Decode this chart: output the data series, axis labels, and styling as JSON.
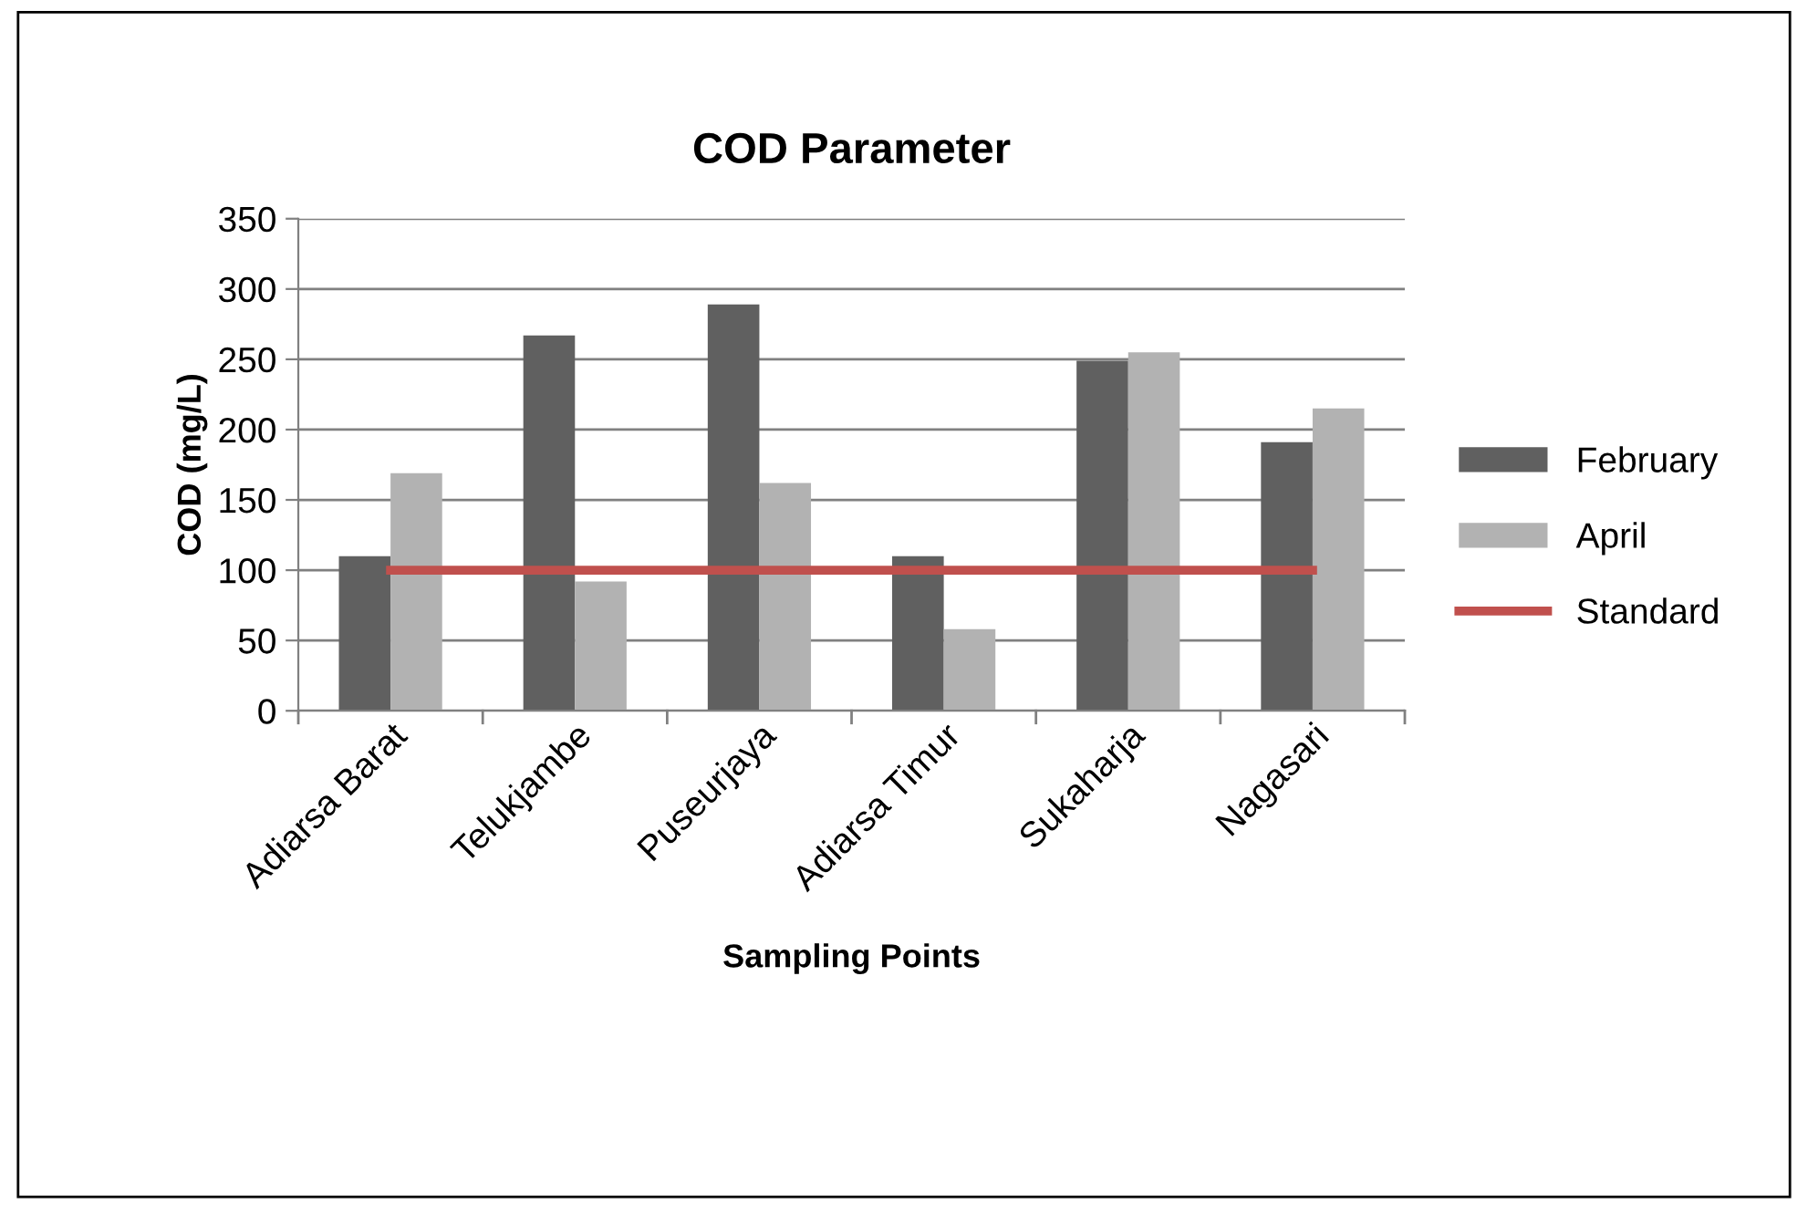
{
  "chart_data": {
    "type": "bar",
    "title": "COD Parameter",
    "xlabel": "Sampling Points",
    "ylabel": "COD (mg/L)",
    "categories": [
      "Adiarsa Barat",
      "Telukjambe",
      "Puseurjaya",
      "Adiarsa Timur",
      "Sukaharja",
      "Nagasari"
    ],
    "series": [
      {
        "name": "February",
        "color": "#606060",
        "values": [
          110,
          267,
          289,
          110,
          249,
          191
        ]
      },
      {
        "name": "April",
        "color": "#b2b2b2",
        "values": [
          169,
          92,
          162,
          58,
          255,
          215
        ]
      },
      {
        "name": "Standard",
        "type": "line",
        "color": "#c0504d",
        "values": [
          100,
          100,
          100,
          100,
          100,
          100
        ]
      }
    ],
    "ylim": [
      0,
      350
    ],
    "yticks": [
      0,
      50,
      100,
      150,
      200,
      250,
      300,
      350
    ],
    "grid": "y",
    "legend": "right",
    "marker": "none"
  }
}
